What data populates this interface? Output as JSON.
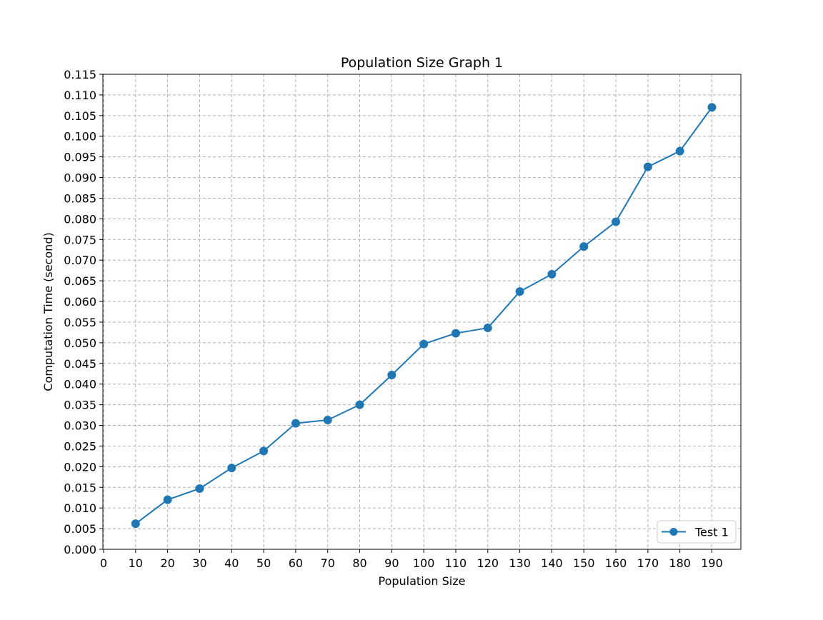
{
  "chart_data": {
    "type": "line",
    "title": "Population Size Graph 1",
    "xlabel": "Population Size",
    "ylabel": "Computation Time (second)",
    "xlim": [
      0,
      190
    ],
    "ylim": [
      0,
      0.115
    ],
    "x_ticks": [
      0,
      10,
      20,
      30,
      40,
      50,
      60,
      70,
      80,
      90,
      100,
      110,
      120,
      130,
      140,
      150,
      160,
      170,
      180,
      190
    ],
    "y_ticks": [
      "0.000",
      "0.005",
      "0.010",
      "0.015",
      "0.020",
      "0.025",
      "0.030",
      "0.035",
      "0.040",
      "0.045",
      "0.050",
      "0.055",
      "0.060",
      "0.065",
      "0.070",
      "0.075",
      "0.080",
      "0.085",
      "0.090",
      "0.095",
      "0.100",
      "0.105",
      "0.110",
      "0.115"
    ],
    "grid": true,
    "legend_position": "lower right",
    "series": [
      {
        "name": "Test 1",
        "color": "#1f77b4",
        "marker": "circle",
        "x": [
          10,
          20,
          30,
          40,
          50,
          60,
          70,
          80,
          90,
          100,
          110,
          120,
          130,
          140,
          150,
          160,
          170,
          180,
          190
        ],
        "y": [
          0.0062,
          0.012,
          0.0147,
          0.0197,
          0.0238,
          0.0305,
          0.0313,
          0.035,
          0.0422,
          0.0497,
          0.0523,
          0.0536,
          0.0624,
          0.0666,
          0.0733,
          0.0793,
          0.0926,
          0.0964,
          0.107
        ]
      }
    ]
  }
}
